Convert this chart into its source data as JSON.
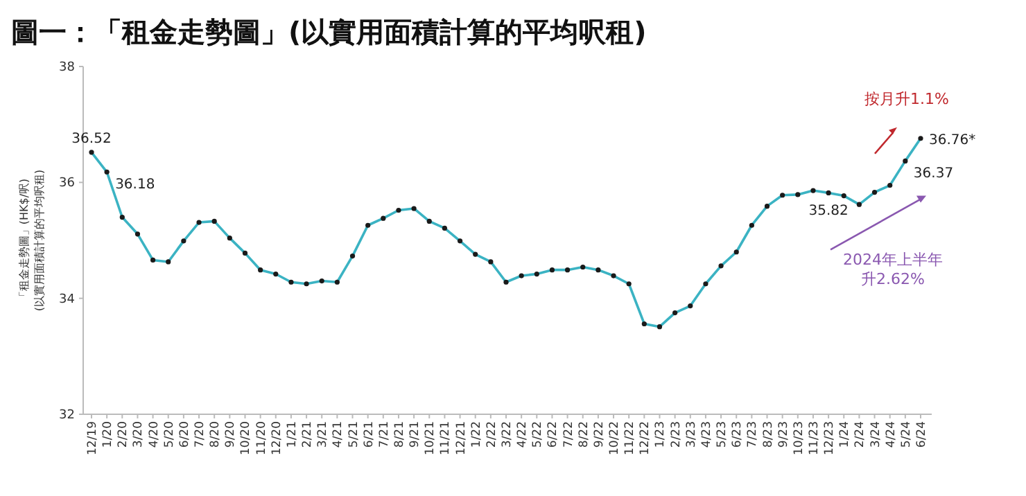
{
  "chart_data": {
    "type": "line",
    "title": "圖一：「租金走勢圖」(以實用面積計算的平均呎租)",
    "ylabel": "「租金走勢圖」(HK$/呎)\n(以實用面積計算的平均呎租)",
    "categories": [
      "12/19",
      "1/20",
      "2/20",
      "3/20",
      "4/20",
      "5/20",
      "6/20",
      "7/20",
      "8/20",
      "9/20",
      "10/20",
      "11/20",
      "12/20",
      "1/21",
      "2/21",
      "3/21",
      "4/21",
      "5/21",
      "6/21",
      "7/21",
      "8/21",
      "9/21",
      "10/21",
      "11/21",
      "12/21",
      "1/22",
      "2/22",
      "3/22",
      "4/22",
      "5/22",
      "6/22",
      "7/22",
      "8/22",
      "9/22",
      "10/22",
      "11/22",
      "12/22",
      "1/23",
      "2/23",
      "3/23",
      "4/23",
      "5/23",
      "6/23",
      "7/23",
      "8/23",
      "9/23",
      "10/23",
      "11/23",
      "12/23",
      "1/24",
      "2/24",
      "3/24",
      "4/24",
      "5/24",
      "6/24"
    ],
    "series": [
      {
        "color": "#3bb3c3",
        "values": [
          36.52,
          36.18,
          35.4,
          35.11,
          34.66,
          34.63,
          34.99,
          35.31,
          35.33,
          35.04,
          34.78,
          34.49,
          34.42,
          34.28,
          34.25,
          34.3,
          34.28,
          34.73,
          35.26,
          35.38,
          35.52,
          35.55,
          35.33,
          35.21,
          34.99,
          34.76,
          34.63,
          34.28,
          34.39,
          34.42,
          34.49,
          34.49,
          34.54,
          34.49,
          34.39,
          34.25,
          33.56,
          33.51,
          33.75,
          33.87,
          34.25,
          34.56,
          34.8,
          35.26,
          35.59,
          35.78,
          35.79,
          35.86,
          35.82,
          35.77,
          35.62,
          35.83,
          35.95,
          36.37,
          36.76
        ],
        "value_labels": [
          "36.52",
          "36.18",
          null,
          null,
          null,
          null,
          null,
          null,
          null,
          null,
          null,
          null,
          null,
          null,
          null,
          null,
          null,
          null,
          null,
          null,
          null,
          null,
          null,
          null,
          null,
          null,
          null,
          null,
          null,
          null,
          null,
          null,
          null,
          null,
          null,
          null,
          null,
          null,
          null,
          null,
          null,
          null,
          null,
          null,
          null,
          null,
          null,
          null,
          "35.82",
          null,
          null,
          null,
          null,
          "36.37",
          "36.76*"
        ]
      }
    ],
    "ylim": [
      32,
      38
    ],
    "yticks": [
      32,
      34,
      36,
      38
    ],
    "grid": false,
    "marker": "circle",
    "line_style": "solid",
    "annotations": [
      "按月升1.1%",
      "2024年上半年",
      "升2.62%"
    ]
  }
}
